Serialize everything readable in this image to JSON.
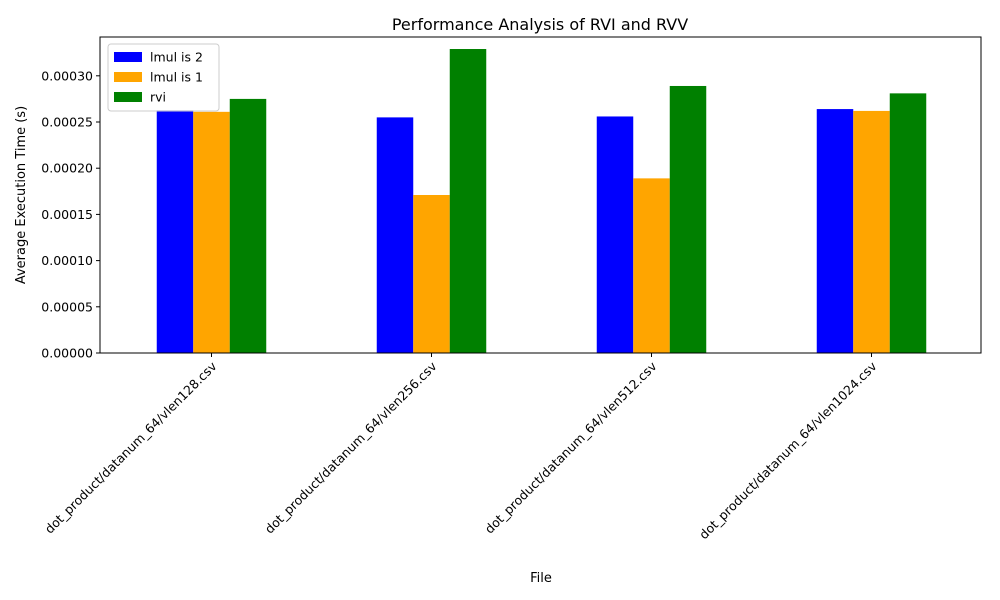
{
  "chart_data": {
    "type": "bar",
    "title": "Performance Analysis of RVI and RVV",
    "xlabel": "File",
    "ylabel": "Average Execution Time (s)",
    "categories": [
      "dot_product/datanum_64/vlen128.csv",
      "dot_product/datanum_64/vlen256.csv",
      "dot_product/datanum_64/vlen512.csv",
      "dot_product/datanum_64/vlen1024.csv"
    ],
    "series": [
      {
        "name": "lmul is 2",
        "color": "#0000ff",
        "values": [
          0.000263,
          0.000255,
          0.000256,
          0.000264
        ]
      },
      {
        "name": "lmul is 1",
        "color": "#ffa500",
        "values": [
          0.000261,
          0.000171,
          0.000189,
          0.000262
        ]
      },
      {
        "name": "rvi",
        "color": "#008000",
        "values": [
          0.000275,
          0.000329,
          0.000289,
          0.000281
        ]
      }
    ],
    "ylim": [
      0,
      0.000342
    ],
    "yticks": [
      "0.00000",
      "0.00005",
      "0.00010",
      "0.00015",
      "0.00020",
      "0.00025",
      "0.00030"
    ],
    "ytick_values": [
      0,
      5e-05,
      0.0001,
      0.00015,
      0.0002,
      0.00025,
      0.0003
    ],
    "grid": false,
    "legend": "top-left"
  }
}
